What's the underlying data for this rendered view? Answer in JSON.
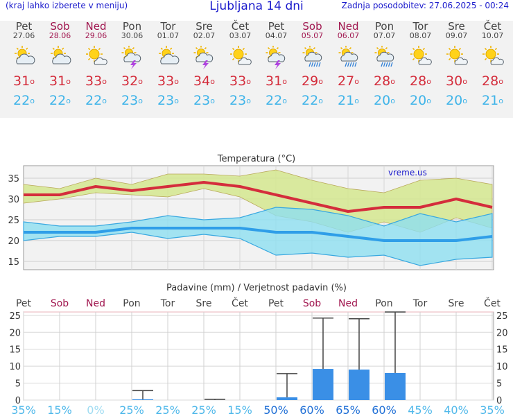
{
  "header": {
    "left_note": "(kraj lahko izberete v meniju)",
    "title": "Ljubljana 14 dni",
    "updated": "Zadnja posodobitev: 27.06.2025 - 00:24"
  },
  "colors": {
    "weekend": "#a0154e",
    "weekday": "#444444",
    "max_temp": "#d42d3c",
    "min_temp": "#3fb4e9",
    "bar": "#3a8fe6",
    "band_max": "#d5e78f",
    "band_min": "#8ddff0"
  },
  "days": [
    {
      "name": "Pet",
      "date": "27.06",
      "weekend": false,
      "icon": "partly-cloudy-sun-icon",
      "tmax": "31",
      "tmin": "22"
    },
    {
      "name": "Sob",
      "date": "28.06",
      "weekend": true,
      "icon": "partly-cloudy-sun-icon",
      "tmax": "31",
      "tmin": "22"
    },
    {
      "name": "Ned",
      "date": "29.06",
      "weekend": true,
      "icon": "sun-small-cloud-icon",
      "tmax": "33",
      "tmin": "22"
    },
    {
      "name": "Pon",
      "date": "30.06",
      "weekend": false,
      "icon": "thunderstorm-sun-icon",
      "tmax": "32",
      "tmin": "23"
    },
    {
      "name": "Tor",
      "date": "01.07",
      "weekend": false,
      "icon": "partly-cloudy-sun-icon",
      "tmax": "33",
      "tmin": "23"
    },
    {
      "name": "Sre",
      "date": "02.07",
      "weekend": false,
      "icon": "thunderstorm-sun-icon",
      "tmax": "34",
      "tmin": "23"
    },
    {
      "name": "Čet",
      "date": "03.07",
      "weekend": false,
      "icon": "sun-small-cloud-icon",
      "tmax": "33",
      "tmin": "23"
    },
    {
      "name": "Pet",
      "date": "04.07",
      "weekend": false,
      "icon": "thunderstorm-sun-icon",
      "tmax": "31",
      "tmin": "22"
    },
    {
      "name": "Sob",
      "date": "05.07",
      "weekend": true,
      "icon": "rain-sun-icon",
      "tmax": "29",
      "tmin": "22"
    },
    {
      "name": "Ned",
      "date": "06.07",
      "weekend": true,
      "icon": "rain-sun-icon",
      "tmax": "27",
      "tmin": "21"
    },
    {
      "name": "Pon",
      "date": "07.07",
      "weekend": false,
      "icon": "rain-sun-icon",
      "tmax": "28",
      "tmin": "20"
    },
    {
      "name": "Tor",
      "date": "08.07",
      "weekend": false,
      "icon": "sun-small-cloud-icon",
      "tmax": "28",
      "tmin": "20"
    },
    {
      "name": "Sre",
      "date": "09.07",
      "weekend": false,
      "icon": "sun-small-cloud-icon",
      "tmax": "30",
      "tmin": "20"
    },
    {
      "name": "Čet",
      "date": "10.07",
      "weekend": false,
      "icon": "sun-small-cloud-icon",
      "tmax": "28",
      "tmin": "21"
    }
  ],
  "chart_data": [
    {
      "type": "line",
      "title": "Temperatura (°C)",
      "watermark": "vreme.us",
      "ylim": [
        13,
        38
      ],
      "yticks": [
        15,
        20,
        25,
        30,
        35
      ],
      "grid": true,
      "x": [
        0,
        1,
        2,
        3,
        4,
        5,
        6,
        7,
        8,
        9,
        10,
        11,
        12,
        13
      ],
      "series": [
        {
          "role": "max",
          "values": [
            31,
            31,
            33,
            32,
            33,
            34,
            33,
            31,
            29,
            27,
            28,
            28,
            30,
            28
          ],
          "band_low": [
            29,
            30,
            31.5,
            31,
            30.5,
            32.5,
            30.5,
            26,
            24.5,
            22,
            24.5,
            22,
            25.5,
            23
          ],
          "band_high": [
            33.5,
            32.5,
            35,
            33.5,
            36,
            36,
            35.5,
            37,
            34.5,
            32.5,
            31.5,
            34.5,
            35,
            33.5
          ]
        },
        {
          "role": "min",
          "values": [
            22,
            22,
            22,
            23,
            23,
            23,
            23,
            22,
            22,
            21,
            20,
            20,
            20,
            21
          ],
          "band_low": [
            20,
            21,
            21,
            22,
            20.5,
            21.5,
            20.5,
            16.5,
            17,
            16,
            16.5,
            14,
            15.5,
            16
          ],
          "band_high": [
            24.5,
            23.5,
            23.5,
            24.5,
            26,
            25,
            25.5,
            28,
            27.5,
            26,
            23.5,
            26.5,
            24.5,
            26.5
          ]
        }
      ]
    },
    {
      "type": "bar",
      "title": "Padavine (mm) / Verjetnost padavin (%)",
      "ylim": [
        0,
        26
      ],
      "yticks": [
        0,
        5,
        10,
        15,
        20,
        25
      ],
      "categories": [
        "Pet",
        "Sob",
        "Ned",
        "Pon",
        "Tor",
        "Sre",
        "Čet",
        "Pet",
        "Sob",
        "Ned",
        "Pon",
        "Tor",
        "Sre",
        "Čet"
      ],
      "values": [
        0,
        0,
        0,
        0.2,
        0,
        0,
        0,
        0.8,
        9.2,
        9.0,
        8.0,
        0,
        0,
        0
      ],
      "error_high": [
        0,
        0,
        0,
        2.8,
        0,
        0.2,
        0,
        7.8,
        24.2,
        24.0,
        26.0,
        0,
        0,
        0
      ],
      "probability": [
        "35%",
        "15%",
        "0%",
        "25%",
        "25%",
        "25%",
        "15%",
        "50%",
        "60%",
        "65%",
        "60%",
        "45%",
        "40%",
        "35%"
      ]
    }
  ]
}
